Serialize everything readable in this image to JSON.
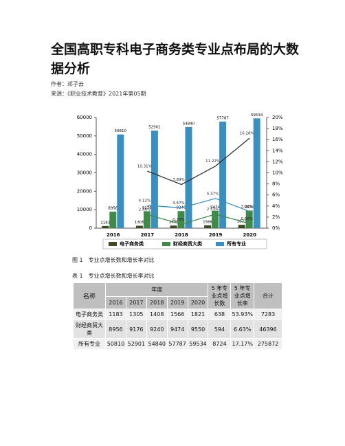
{
  "header": {
    "title": "全国高职专科电子商务类专业点布局的大数据分析",
    "author": "作者：邓子云",
    "source": "来源：《职业技术教育》2021年第05期"
  },
  "chart_data": {
    "type": "bar",
    "categories": [
      "2016",
      "2017",
      "2018",
      "2019",
      "2020"
    ],
    "series": [
      {
        "name": "电子商务类",
        "color": "#3d4a26",
        "values": [
          1183,
          1305,
          1408,
          1566,
          1821
        ]
      },
      {
        "name": "财经商贸大类",
        "color": "#3f8a4a",
        "values": [
          8956,
          9176,
          9240,
          9474,
          9550
        ]
      },
      {
        "name": "所有专业",
        "color": "#3a8fbf",
        "values": [
          50810,
          52901,
          54840,
          57787,
          59534
        ]
      }
    ],
    "growth_series": [
      {
        "color": "#333333",
        "axis": "y2",
        "values": [
          null,
          10.31,
          7.89,
          11.22,
          16.28
        ],
        "value_labels": [
          null,
          "10.31%",
          "7.89%",
          "11.22%",
          "16.28%"
        ]
      },
      {
        "color": "#3f8a4a",
        "axis": "y2",
        "values": [
          null,
          2.46,
          0.7,
          2.53,
          0.8
        ],
        "value_labels": [
          null,
          "2.46%",
          "0.70%",
          "2.53%",
          "0.80%"
        ]
      },
      {
        "color": "#3a8fbf",
        "axis": "y2",
        "values": [
          null,
          4.12,
          3.67,
          5.37,
          3.02
        ],
        "value_labels": [
          null,
          "4.12%",
          "3.67%",
          "5.37%",
          "3.02%"
        ]
      }
    ],
    "ylim": [
      0,
      60000
    ],
    "yticks": [
      0,
      10000,
      20000,
      30000,
      40000,
      50000,
      60000
    ],
    "y2lim": [
      0,
      20
    ],
    "y2ticks": [
      {
        "value": 0,
        "label": "0%"
      },
      {
        "value": 2,
        "label": "2%"
      },
      {
        "value": 4,
        "label": "4%"
      },
      {
        "value": 6,
        "label": "6%"
      },
      {
        "value": 8,
        "label": "8%"
      },
      {
        "value": 10,
        "label": "10%"
      },
      {
        "value": 12,
        "label": "12%"
      },
      {
        "value": 14,
        "label": "14%"
      },
      {
        "value": 16,
        "label": "16%"
      },
      {
        "value": 18,
        "label": "18%"
      },
      {
        "value": 20,
        "label": "20%"
      }
    ],
    "legend": "bottom"
  },
  "figure_caption": "图 1　专业点增长数和增长率对比",
  "table": {
    "caption": "表 1　专业点增长数和增长率对比",
    "name_header": "名称",
    "year_header": "年度",
    "years": [
      "2016",
      "2017",
      "2018",
      "2019",
      "2020"
    ],
    "extra_headers": [
      "5 年专业点增长数",
      "5 年专业点增长率",
      "合计"
    ],
    "rows": [
      [
        "电子商务类",
        "1183",
        "1305",
        "1408",
        "1566",
        "1821",
        "638",
        "53.93%",
        "7283"
      ],
      [
        "财经商贸大类",
        "8956",
        "9176",
        "9240",
        "9474",
        "9550",
        "594",
        "6.63%",
        "46396"
      ],
      [
        "所有专业",
        "50810",
        "52901",
        "54840",
        "57787",
        "59534",
        "8724",
        "17.17%",
        "275872"
      ]
    ]
  }
}
